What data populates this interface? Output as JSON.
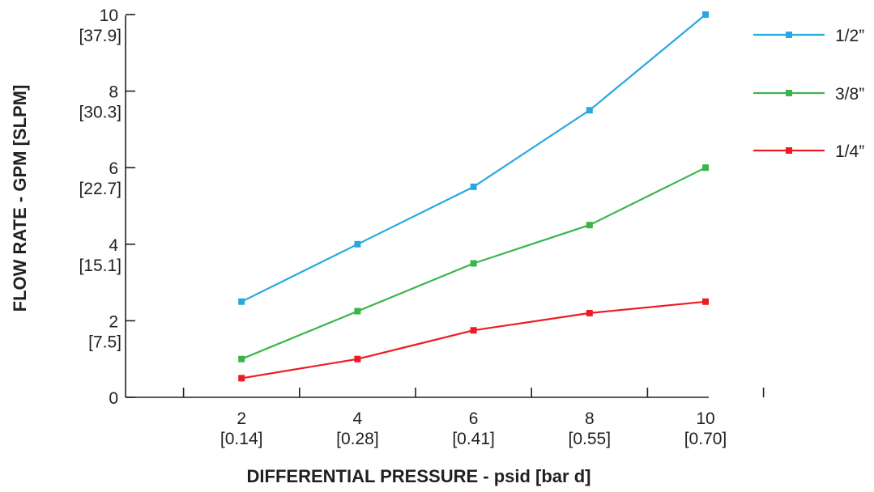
{
  "chart_data": {
    "type": "line",
    "xlabel": "DIFFERENTIAL PRESSURE - psid [bar d]",
    "ylabel": "FLOW RATE - GPM [SLPM]",
    "x": [
      2,
      4,
      6,
      8,
      10
    ],
    "xlim": [
      0,
      11
    ],
    "ylim": [
      0,
      10
    ],
    "x_ticks": [
      {
        "value": 2,
        "label": "2",
        "sublabel": "[0.14]"
      },
      {
        "value": 4,
        "label": "4",
        "sublabel": "[0.28]"
      },
      {
        "value": 6,
        "label": "6",
        "sublabel": "[0.41]"
      },
      {
        "value": 8,
        "label": "8",
        "sublabel": "[0.55]"
      },
      {
        "value": 10,
        "label": "10",
        "sublabel": "[0.70]"
      }
    ],
    "y_ticks": [
      {
        "value": 0,
        "label": "0",
        "sublabel": ""
      },
      {
        "value": 2,
        "label": "2",
        "sublabel": "[7.5]"
      },
      {
        "value": 4,
        "label": "4",
        "sublabel": "[15.1]"
      },
      {
        "value": 6,
        "label": "6",
        "sublabel": "[22.7]"
      },
      {
        "value": 8,
        "label": "8",
        "sublabel": "[30.3]"
      },
      {
        "value": 10,
        "label": "10",
        "sublabel": "[37.9]"
      }
    ],
    "series": [
      {
        "name": "1/2”",
        "color": "#29a8e0",
        "values": [
          2.5,
          4.0,
          5.5,
          7.5,
          10.0
        ]
      },
      {
        "name": "3/8”",
        "color": "#3bb54a",
        "values": [
          1.0,
          2.25,
          3.5,
          4.5,
          6.0
        ]
      },
      {
        "name": "1/4”",
        "color": "#ed1c24",
        "values": [
          0.5,
          1.0,
          1.75,
          2.2,
          2.5
        ]
      }
    ],
    "legend_position": "right",
    "grid": false
  }
}
